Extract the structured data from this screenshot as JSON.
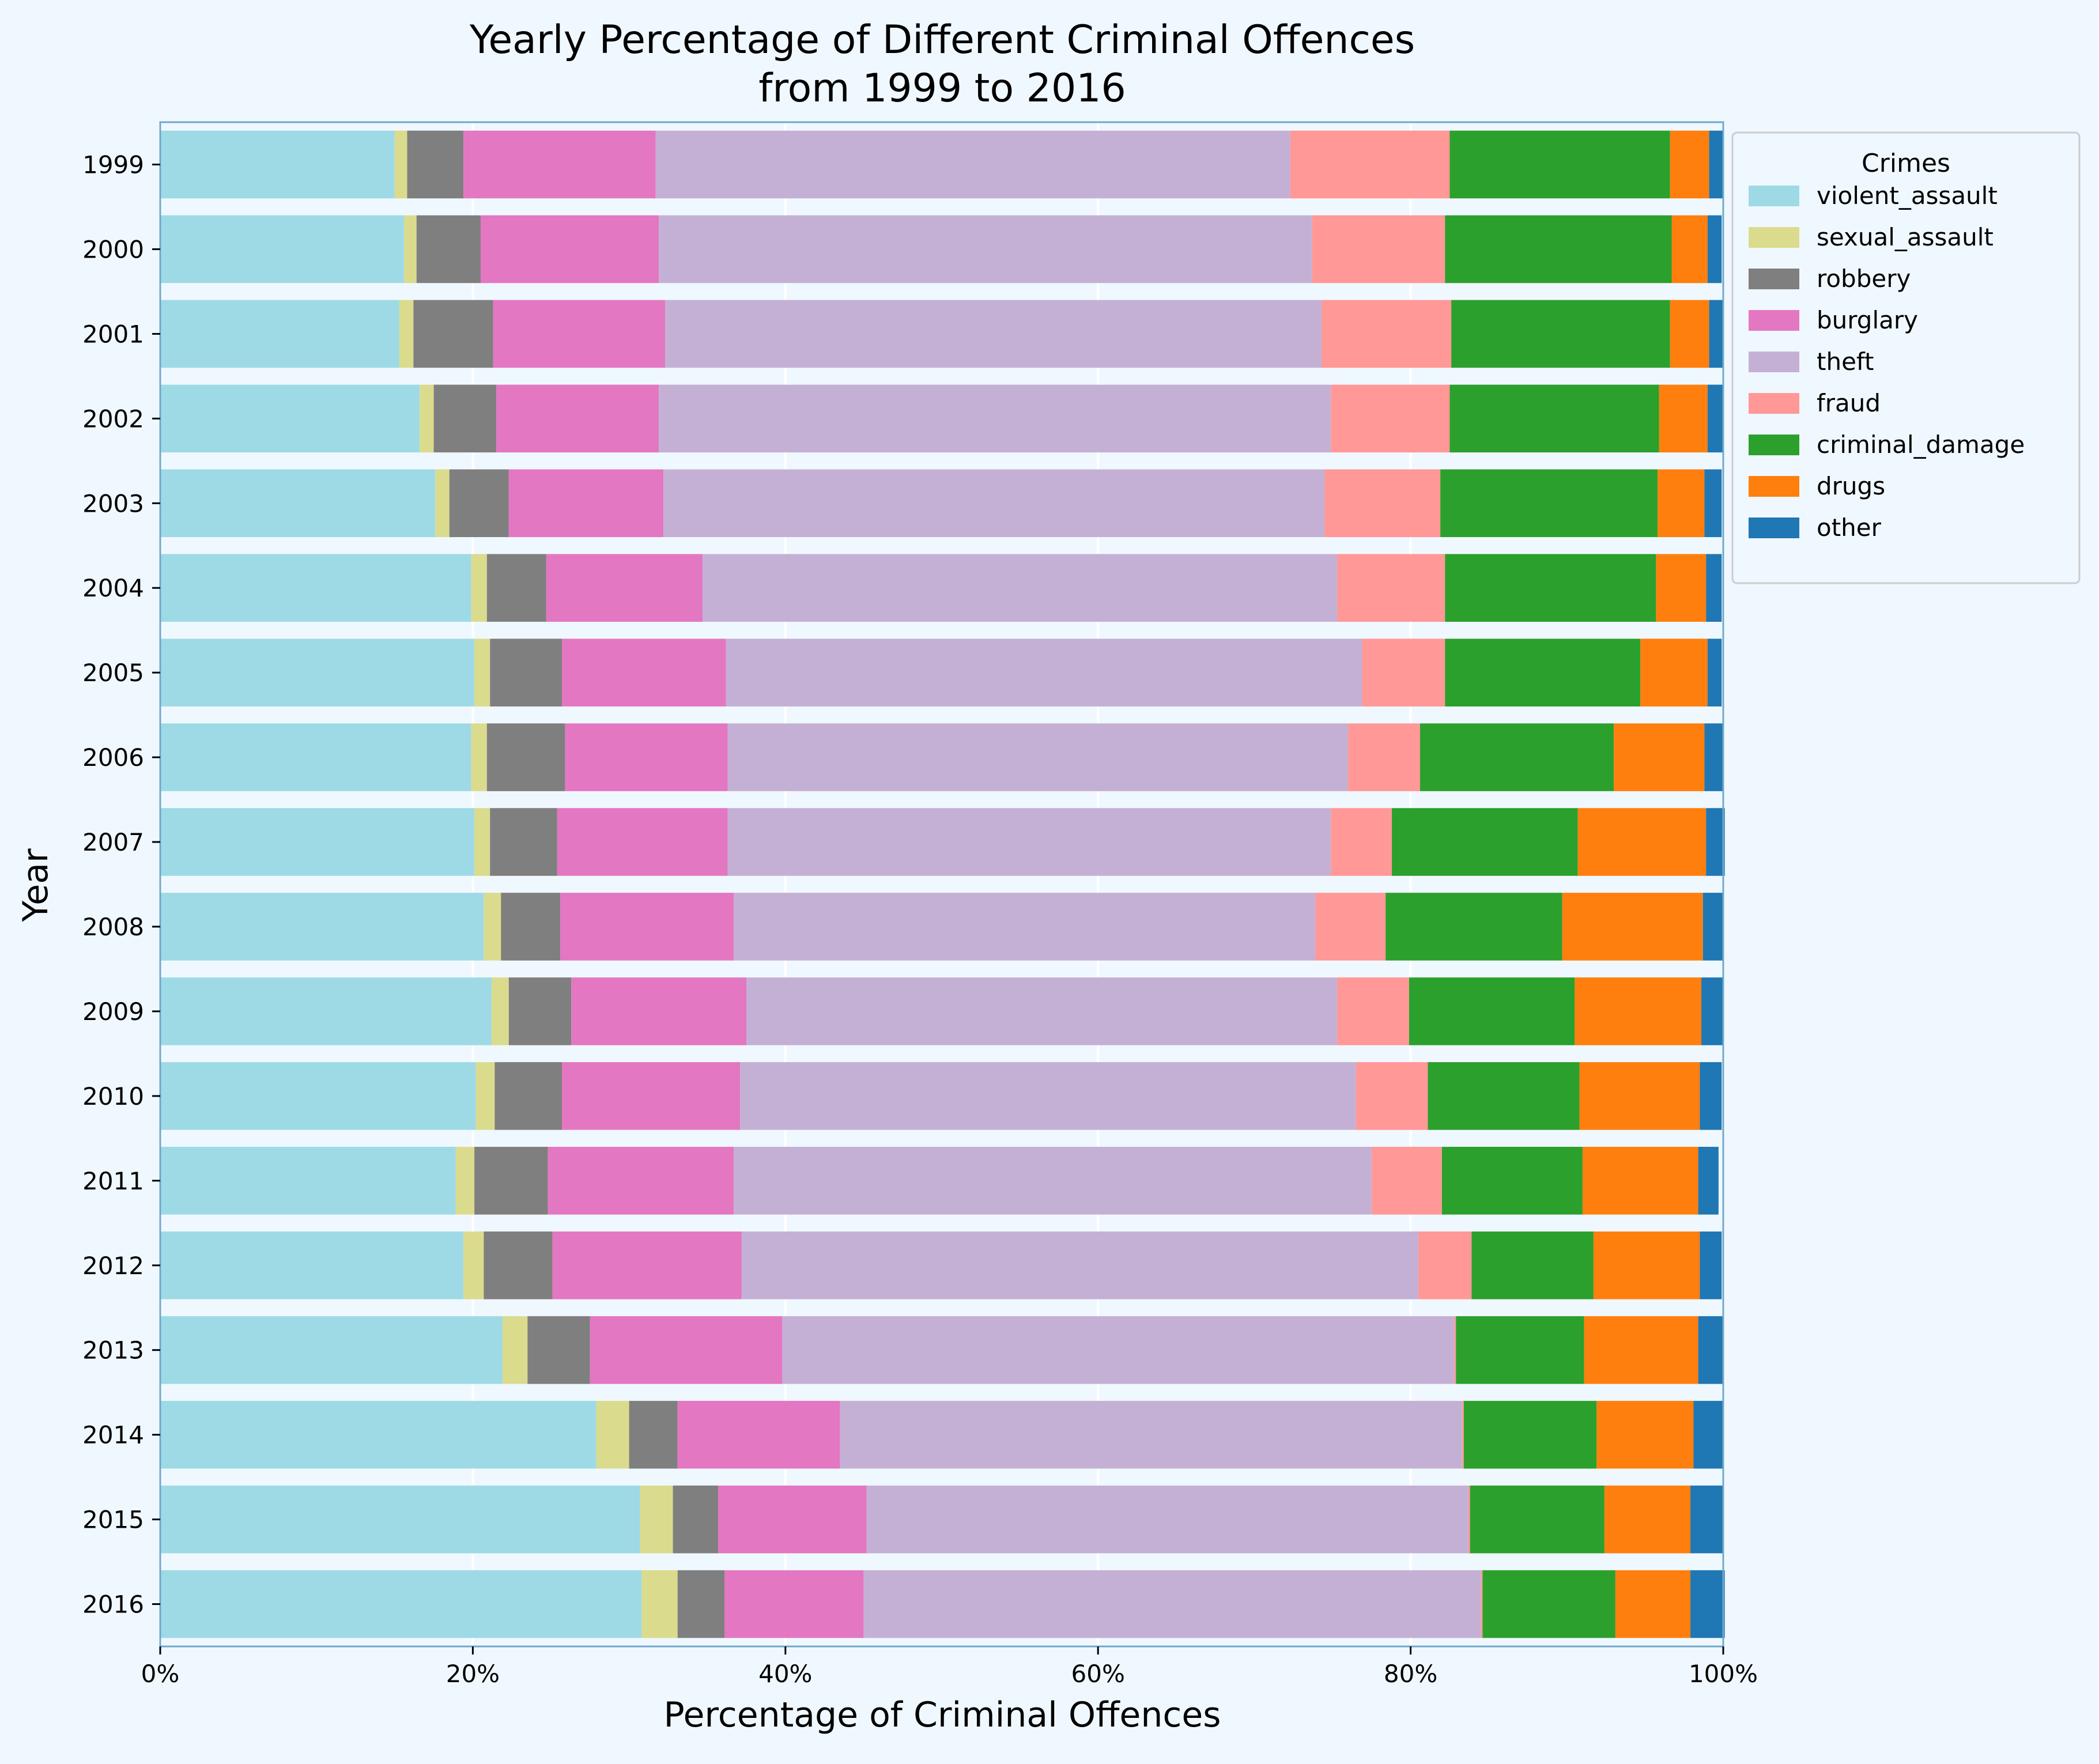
{
  "chart_data": {
    "type": "bar",
    "orientation": "horizontal",
    "stacked": true,
    "title_lines": [
      "Yearly Percentage of Different Criminal Offences",
      "from 1999 to 2016"
    ],
    "xlabel": "Percentage of Criminal Offences",
    "ylabel": "Year",
    "xlim": [
      0,
      100
    ],
    "x_ticks": [
      0,
      20,
      40,
      60,
      80,
      100
    ],
    "x_tick_labels": [
      "0%",
      "20%",
      "40%",
      "60%",
      "80%",
      "100%"
    ],
    "grid": "vertical",
    "legend": {
      "title": "Crimes",
      "placement": "outside-top-right"
    },
    "categories": [
      "1999",
      "2000",
      "2001",
      "2002",
      "2003",
      "2004",
      "2005",
      "2006",
      "2007",
      "2008",
      "2009",
      "2010",
      "2011",
      "2012",
      "2013",
      "2014",
      "2015",
      "2016"
    ],
    "series": [
      {
        "name": "violent_assault",
        "color": "#9edae5",
        "values": [
          15.0,
          15.6,
          15.3,
          16.6,
          17.6,
          19.9,
          20.1,
          19.9,
          20.1,
          20.7,
          21.2,
          20.2,
          18.9,
          19.4,
          21.9,
          27.9,
          30.7,
          30.8
        ]
      },
      {
        "name": "sexual_assault",
        "color": "#dbdb8d",
        "values": [
          0.8,
          0.8,
          0.9,
          0.9,
          0.9,
          1.0,
          1.0,
          1.0,
          1.0,
          1.1,
          1.1,
          1.2,
          1.2,
          1.3,
          1.6,
          2.1,
          2.1,
          2.3
        ]
      },
      {
        "name": "robbery",
        "color": "#7f7f7f",
        "values": [
          3.6,
          4.1,
          5.1,
          4.0,
          3.8,
          3.8,
          4.6,
          5.0,
          4.3,
          3.8,
          4.0,
          4.3,
          4.7,
          4.4,
          4.0,
          3.1,
          2.9,
          3.0
        ]
      },
      {
        "name": "burglary",
        "color": "#e377c2",
        "values": [
          12.3,
          11.4,
          11.0,
          10.4,
          9.9,
          10.0,
          10.5,
          10.4,
          10.9,
          11.1,
          11.2,
          11.4,
          11.9,
          12.1,
          12.3,
          10.4,
          9.5,
          8.9
        ]
      },
      {
        "name": "theft",
        "color": "#c5b0d5",
        "values": [
          40.6,
          41.8,
          42.0,
          43.0,
          42.3,
          40.6,
          40.7,
          39.7,
          38.6,
          37.2,
          37.8,
          39.4,
          40.8,
          43.3,
          43.0,
          39.8,
          38.5,
          39.5
        ]
      },
      {
        "name": "fraud",
        "color": "#ff9896",
        "values": [
          10.2,
          8.5,
          8.3,
          7.6,
          7.4,
          6.9,
          5.3,
          4.6,
          3.9,
          4.5,
          4.6,
          4.6,
          4.5,
          3.4,
          0.1,
          0.1,
          0.1,
          0.1
        ]
      },
      {
        "name": "criminal_damage",
        "color": "#2ca02c",
        "values": [
          14.1,
          14.5,
          14.0,
          13.4,
          13.9,
          13.5,
          12.5,
          12.4,
          11.9,
          11.3,
          10.6,
          9.7,
          9.0,
          7.8,
          8.2,
          8.5,
          8.6,
          8.5
        ]
      },
      {
        "name": "drugs",
        "color": "#ff7f0e",
        "values": [
          2.5,
          2.3,
          2.5,
          3.1,
          3.0,
          3.2,
          4.3,
          5.8,
          8.2,
          9.0,
          8.1,
          7.7,
          7.4,
          6.8,
          7.3,
          6.2,
          5.5,
          4.8
        ]
      },
      {
        "name": "other",
        "color": "#1f77b4",
        "values": [
          0.9,
          0.9,
          0.9,
          1.0,
          1.1,
          1.0,
          0.9,
          1.2,
          1.2,
          1.3,
          1.4,
          1.4,
          1.3,
          1.4,
          1.6,
          1.9,
          2.1,
          2.2
        ]
      }
    ]
  }
}
